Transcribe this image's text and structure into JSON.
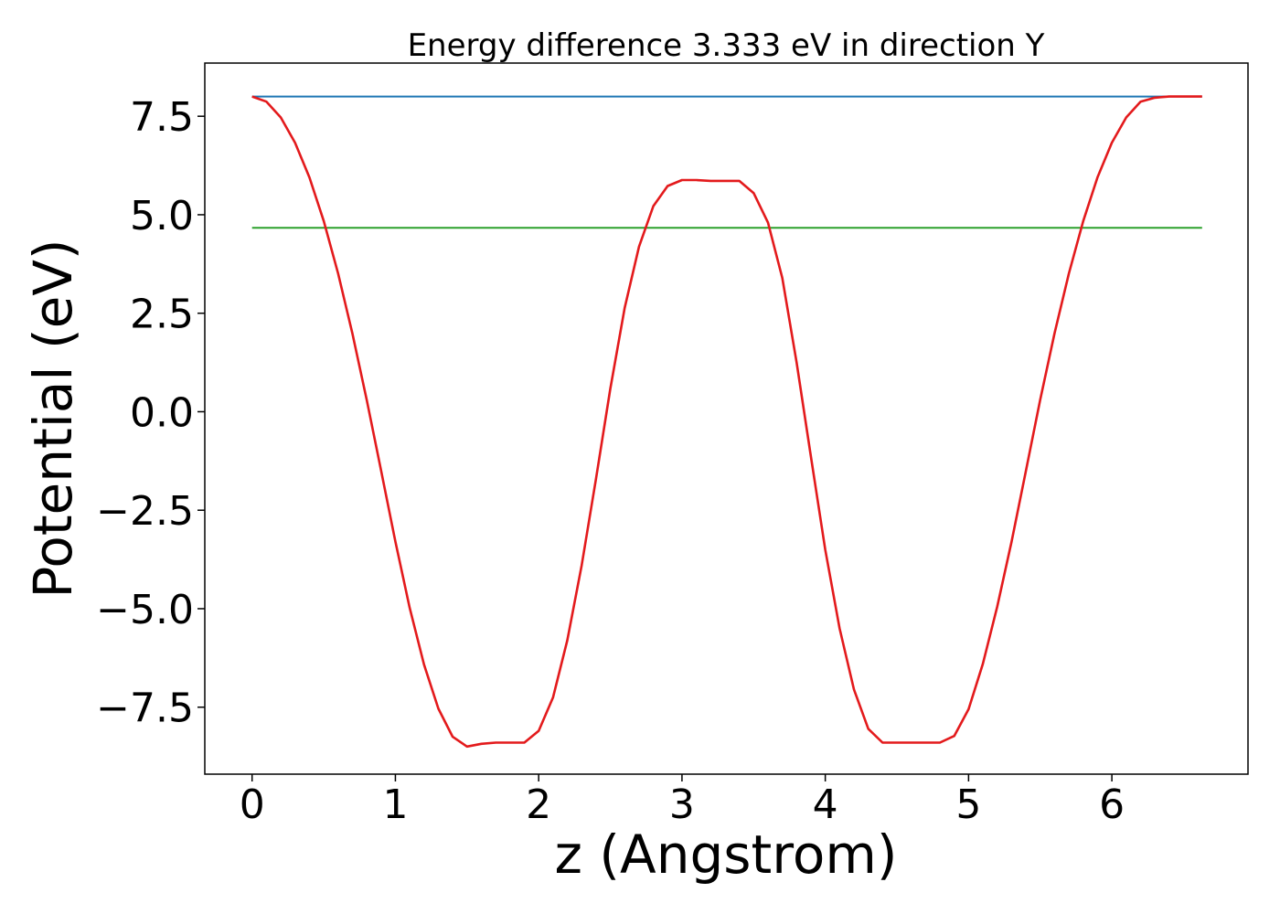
{
  "chart_data": {
    "type": "line",
    "title": "Energy difference 3.333 eV in direction Y",
    "xlabel": "z (Angstrom)",
    "ylabel": "Potential (eV)",
    "xlim": [
      -0.33,
      6.95
    ],
    "ylim": [
      -9.2,
      8.85
    ],
    "x_ticks": [
      0,
      1,
      2,
      3,
      4,
      5,
      6
    ],
    "x_tick_labels": [
      "0",
      "1",
      "2",
      "3",
      "4",
      "5",
      "6"
    ],
    "y_ticks": [
      7.5,
      5.0,
      2.5,
      0.0,
      -2.5,
      -5.0,
      -7.5
    ],
    "y_tick_labels": [
      "7.5",
      "5.0",
      "2.5",
      "0.0",
      "−2.5",
      "−5.0",
      "−7.5"
    ],
    "grid": false,
    "series": [
      {
        "color": "#1f77b4",
        "x": [
          0,
          6.63
        ],
        "y": [
          8.0,
          8.0
        ]
      },
      {
        "color": "#2ca02c",
        "x": [
          0,
          6.63
        ],
        "y": [
          4.667,
          4.667
        ]
      },
      {
        "color": "#e31a1c",
        "x": [
          0.0,
          0.1,
          0.2,
          0.3,
          0.4,
          0.5,
          0.6,
          0.7,
          0.8,
          0.9,
          1.0,
          1.1,
          1.2,
          1.3,
          1.4,
          1.5,
          1.6,
          1.7,
          1.8,
          1.85,
          1.9,
          2.0,
          2.1,
          2.2,
          2.3,
          2.4,
          2.5,
          2.6,
          2.7,
          2.8,
          2.9,
          3.0,
          3.1,
          3.2,
          3.3,
          3.315,
          3.4,
          3.5,
          3.6,
          3.7,
          3.8,
          3.9,
          4.0,
          4.1,
          4.2,
          4.3,
          4.4,
          4.5,
          4.6,
          4.7,
          4.78,
          4.8,
          4.9,
          5.0,
          5.1,
          5.2,
          5.3,
          5.4,
          5.5,
          5.6,
          5.7,
          5.8,
          5.9,
          6.0,
          6.1,
          6.2,
          6.3,
          6.4,
          6.5,
          6.6,
          6.63
        ],
        "y": [
          8.0,
          7.87,
          7.47,
          6.83,
          5.95,
          4.84,
          3.51,
          1.99,
          0.3,
          -1.49,
          -3.3,
          -4.98,
          -6.42,
          -7.54,
          -8.25,
          -8.5,
          -8.43,
          -8.4,
          -8.4,
          -8.4,
          -8.4,
          -8.1,
          -7.25,
          -5.8,
          -3.9,
          -1.7,
          0.58,
          2.63,
          4.19,
          5.22,
          5.73,
          5.88,
          5.88,
          5.86,
          5.86,
          5.86,
          5.86,
          5.55,
          4.8,
          3.4,
          1.25,
          -1.15,
          -3.5,
          -5.5,
          -7.05,
          -8.05,
          -8.4,
          -8.4,
          -8.4,
          -8.4,
          -8.4,
          -8.4,
          -8.23,
          -7.55,
          -6.4,
          -4.95,
          -3.3,
          -1.5,
          0.3,
          1.99,
          3.51,
          4.84,
          5.95,
          6.83,
          7.47,
          7.87,
          7.97,
          8.0,
          8.0,
          8.0,
          8.0
        ]
      }
    ]
  }
}
